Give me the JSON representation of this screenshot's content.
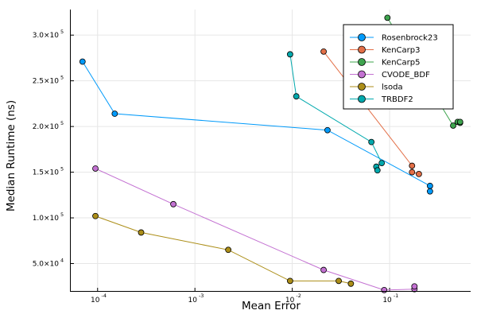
{
  "chart_data": {
    "type": "line",
    "title": "",
    "xlabel": "Mean Error",
    "ylabel": "Median Runtime (ns)",
    "xscale": "log",
    "xlim": [
      5.3e-05,
      0.68
    ],
    "ylim": [
      20000,
      328000
    ],
    "grid": true,
    "legend_position": "top-right",
    "x_ticks": [
      {
        "value": 0.0001,
        "base": "10",
        "exp": "-4"
      },
      {
        "value": 0.001,
        "base": "10",
        "exp": "-3"
      },
      {
        "value": 0.01,
        "base": "10",
        "exp": "-2"
      },
      {
        "value": 0.1,
        "base": "10",
        "exp": "-1"
      }
    ],
    "y_ticks": [
      {
        "value": 50000,
        "base": "5.0×10",
        "exp": "4"
      },
      {
        "value": 100000,
        "base": "1.0×10",
        "exp": "5"
      },
      {
        "value": 150000,
        "base": "1.5×10",
        "exp": "5"
      },
      {
        "value": 200000,
        "base": "2.0×10",
        "exp": "5"
      },
      {
        "value": 250000,
        "base": "2.5×10",
        "exp": "5"
      },
      {
        "value": 300000,
        "base": "3.0×10",
        "exp": "5"
      }
    ],
    "series": [
      {
        "name": "Rosenbrock23",
        "color": "#009AFA",
        "points": [
          [
            7e-05,
            271000
          ],
          [
            0.00015,
            214000
          ],
          [
            0.023,
            196000
          ],
          [
            0.26,
            135000
          ],
          [
            0.26,
            129000
          ]
        ]
      },
      {
        "name": "KenCarp3",
        "color": "#E36F47",
        "points": [
          [
            0.021,
            282000
          ],
          [
            0.17,
            157000
          ],
          [
            0.17,
            150000
          ],
          [
            0.2,
            148000
          ]
        ]
      },
      {
        "name": "KenCarp5",
        "color": "#3EA44E",
        "points": [
          [
            0.095,
            319000
          ],
          [
            0.45,
            201000
          ],
          [
            0.5,
            205000
          ],
          [
            0.53,
            204000
          ],
          [
            0.53,
            205000
          ]
        ]
      },
      {
        "name": "CVODE_BDF",
        "color": "#C371D2",
        "points": [
          [
            9.5e-05,
            154000
          ],
          [
            0.0006,
            115000
          ],
          [
            0.021,
            43000
          ],
          [
            0.088,
            21000
          ],
          [
            0.18,
            22000
          ],
          [
            0.18,
            25000
          ]
        ]
      },
      {
        "name": "lsoda",
        "color": "#AC8E18",
        "points": [
          [
            9.5e-05,
            102000
          ],
          [
            0.00028,
            84000
          ],
          [
            0.0022,
            65000
          ],
          [
            0.0095,
            31000
          ],
          [
            0.03,
            31000
          ],
          [
            0.04,
            28000
          ]
        ]
      },
      {
        "name": "TRBDF2",
        "color": "#00A9AD",
        "points": [
          [
            0.0095,
            279000
          ],
          [
            0.011,
            233000
          ],
          [
            0.065,
            183000
          ],
          [
            0.083,
            160000
          ],
          [
            0.073,
            156000
          ],
          [
            0.075,
            152000
          ]
        ]
      }
    ]
  }
}
